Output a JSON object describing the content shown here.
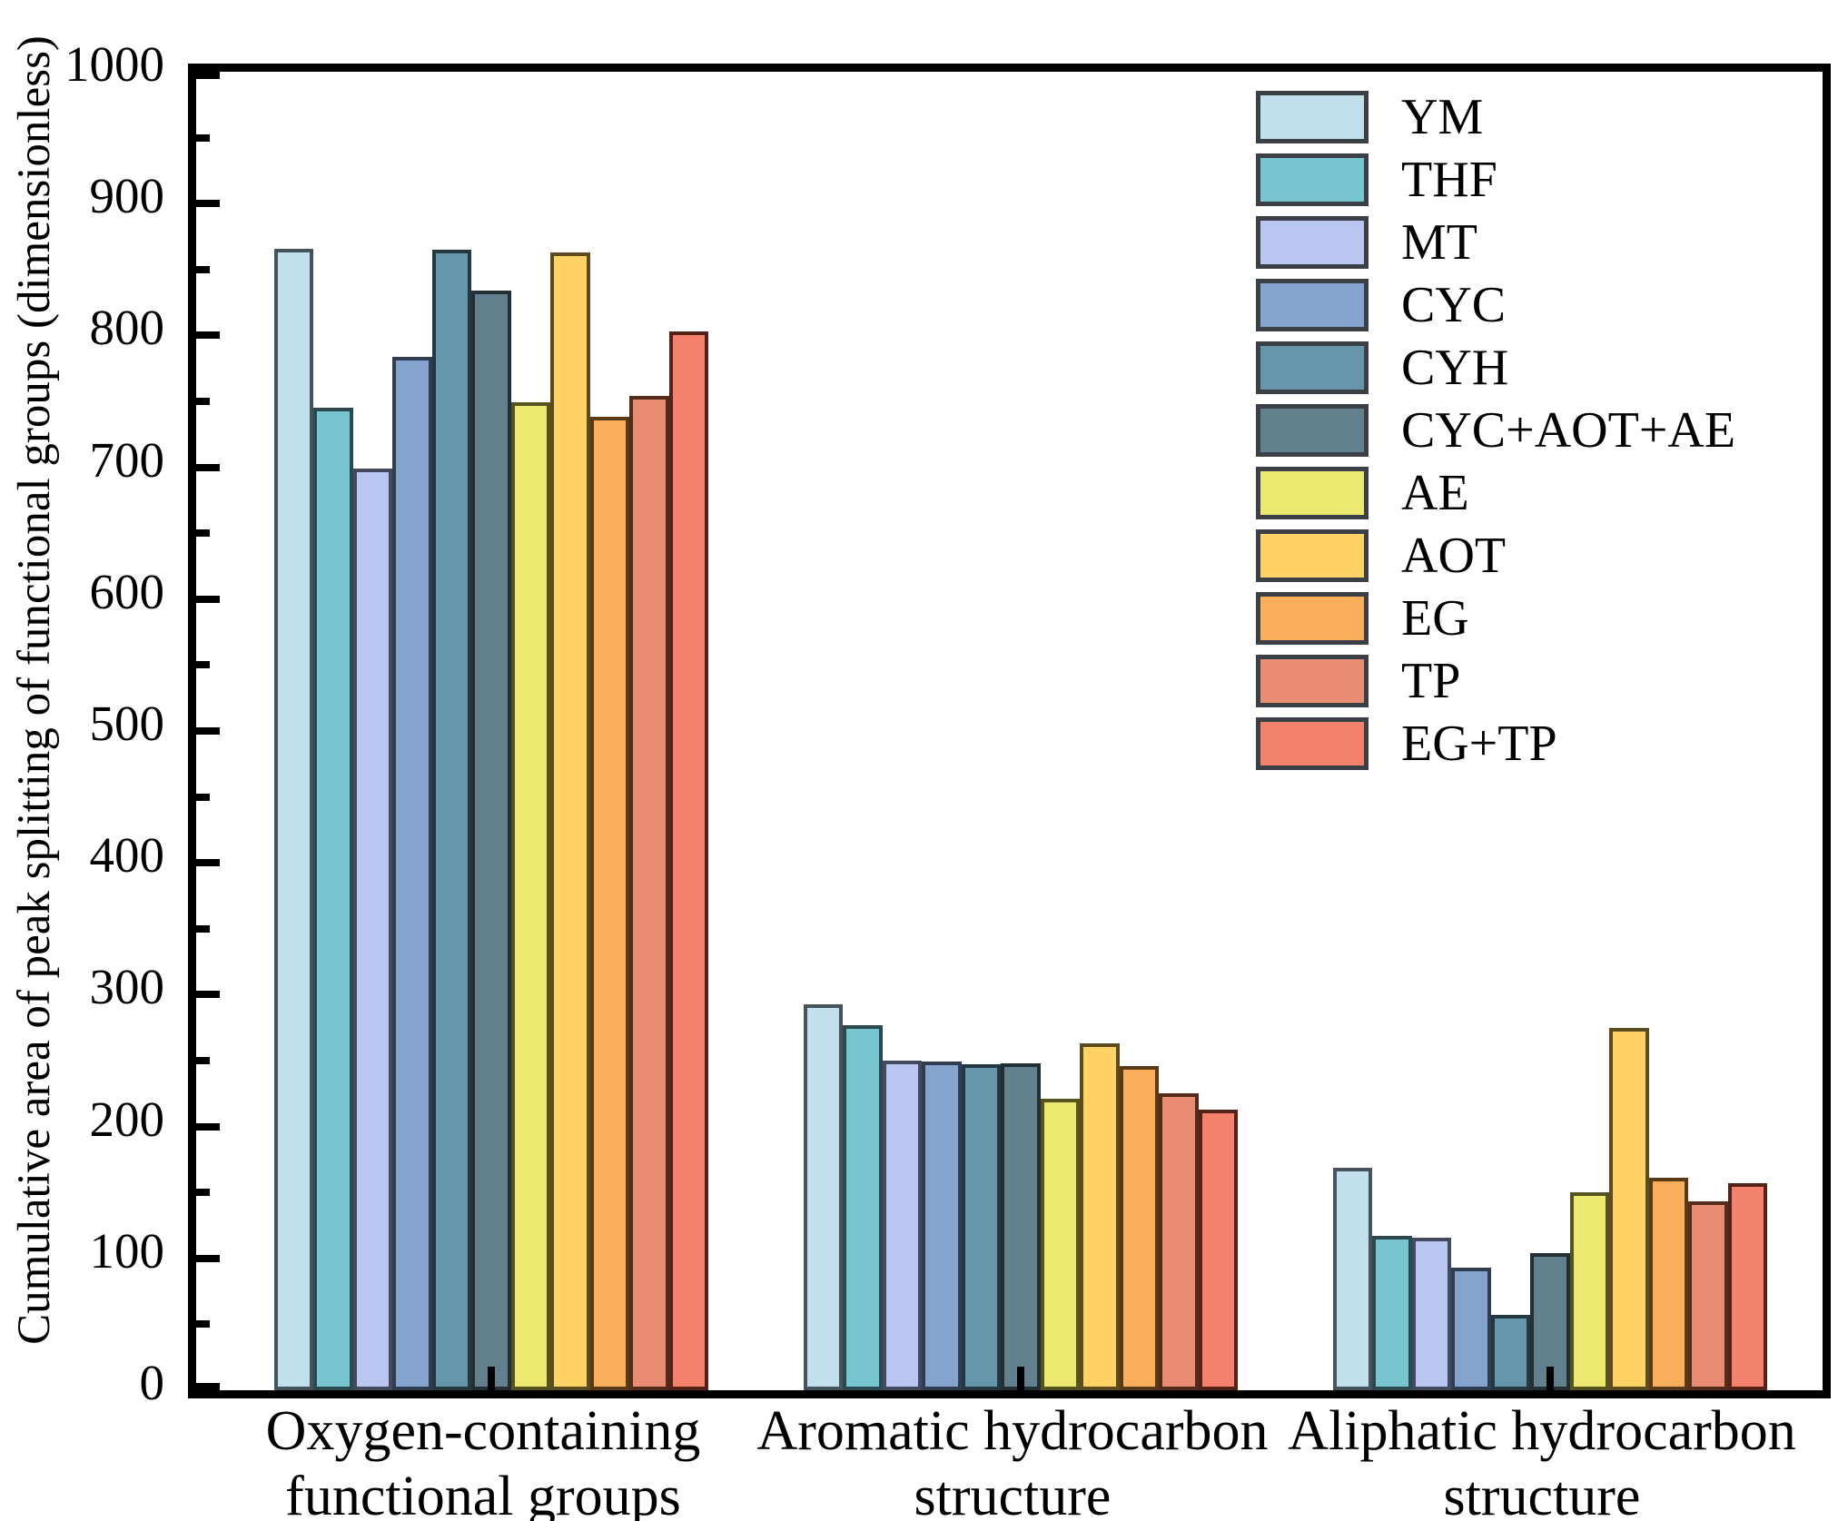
{
  "chart_data": {
    "type": "bar",
    "title": "",
    "xlabel": "",
    "ylabel": "Cumulative area of peak splitting of functional groups (dimensionless)",
    "ylim": [
      0,
      1000
    ],
    "ytick_major_step": 100,
    "ytick_minor_step": 50,
    "grid": false,
    "legend_position": "upper right",
    "categories": [
      [
        "Oxygen-containing",
        "functional groups"
      ],
      [
        "Aromatic hydrocarbon",
        "structure"
      ],
      [
        "Aliphatic hydrocarbon",
        "structure"
      ]
    ],
    "y_major_tick_labels": [
      "0",
      "100",
      "200",
      "300",
      "400",
      "500",
      "600",
      "700",
      "800",
      "900",
      "1000"
    ],
    "series": [
      {
        "name": "YM",
        "color": "#C2DFEE",
        "edge": "#45535c",
        "values": [
          866,
          293,
          169
        ]
      },
      {
        "name": "THF",
        "color": "#76C5CF",
        "edge": "#2a4a4f",
        "values": [
          745,
          277,
          117
        ]
      },
      {
        "name": "MT",
        "color": "#B9C6F2",
        "edge": "#434a5e",
        "values": [
          699,
          250,
          116
        ]
      },
      {
        "name": "CYC",
        "color": "#85A3CF",
        "edge": "#303c50",
        "values": [
          784,
          249,
          93
        ]
      },
      {
        "name": "CYH",
        "color": "#6696AA",
        "edge": "#25373f",
        "values": [
          865,
          247,
          57
        ]
      },
      {
        "name": "CYC+AOT+AE",
        "color": "#63808E",
        "edge": "#242f35",
        "values": [
          834,
          248,
          104
        ]
      },
      {
        "name": "AE",
        "color": "#EDE870",
        "edge": "#56531f",
        "values": [
          749,
          221,
          150
        ]
      },
      {
        "name": "AOT",
        "color": "#FED264",
        "edge": "#5c4b1e",
        "values": [
          863,
          263,
          275
        ]
      },
      {
        "name": "EG",
        "color": "#FBAF5C",
        "edge": "#5a3a14",
        "values": [
          738,
          246,
          161
        ]
      },
      {
        "name": "TP",
        "color": "#E88D73",
        "edge": "#532c1c",
        "values": [
          754,
          225,
          143
        ]
      },
      {
        "name": "EG+TP",
        "color": "#F4816B",
        "edge": "#552217",
        "values": [
          803,
          213,
          157
        ]
      }
    ]
  }
}
